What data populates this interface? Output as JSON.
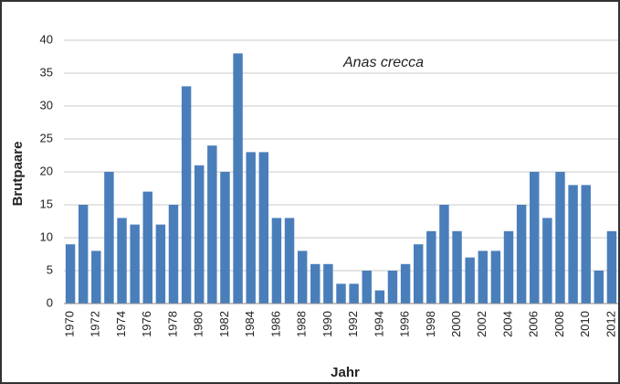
{
  "chart_data": {
    "type": "bar",
    "annotation": "Anas crecca",
    "x_label": "Jahr",
    "y_label": "Brutpaare",
    "categories": [
      "1970",
      null,
      "1972",
      null,
      "1974",
      null,
      "1976",
      null,
      "1978",
      null,
      "1980",
      null,
      "1982",
      null,
      "1984",
      null,
      "1986",
      null,
      "1988",
      null,
      "1990",
      null,
      "1992",
      null,
      "1994",
      null,
      "1996",
      null,
      "1998",
      null,
      "2000",
      null,
      "2002",
      null,
      "2004",
      null,
      "2006",
      null,
      "2008",
      null,
      "2010",
      null,
      "2012"
    ],
    "values": [
      9,
      15,
      8,
      20,
      13,
      12,
      17,
      12,
      15,
      33,
      21,
      24,
      20,
      38,
      23,
      23,
      13,
      13,
      8,
      6,
      6,
      3,
      3,
      5,
      2,
      5,
      6,
      9,
      11,
      15,
      11,
      7,
      8,
      8,
      11,
      15,
      20,
      13,
      20,
      18,
      18,
      5,
      11
    ],
    "color": "#4a7ebb",
    "ylim": [
      0,
      40
    ],
    "yticks": [
      0,
      5,
      10,
      15,
      20,
      25,
      30,
      35,
      40
    ],
    "grid": true
  }
}
